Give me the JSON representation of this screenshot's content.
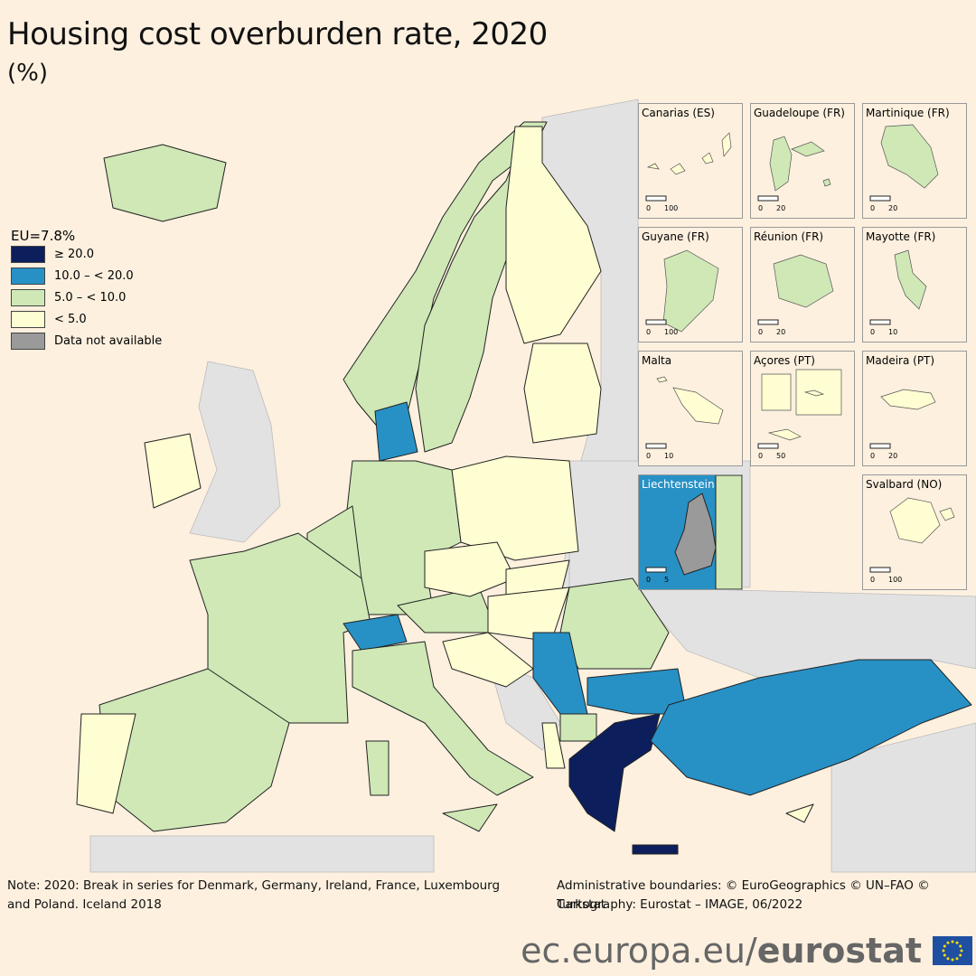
{
  "header": {
    "title": "Housing cost overburden rate, 2020",
    "subtitle": "(%)"
  },
  "legend": {
    "title": "EU=7.8%",
    "items": [
      {
        "label": "≥ 20.0",
        "color": "#0c1f5c"
      },
      {
        "label": "10.0 – < 20.0",
        "color": "#2791c6"
      },
      {
        "label": "5.0 – < 10.0",
        "color": "#cfe8b6"
      },
      {
        "label": "< 5.0",
        "color": "#fffdd2"
      },
      {
        "label": "Data not available",
        "color": "#9a9a9a"
      }
    ]
  },
  "insets": [
    {
      "label": "Canarias (ES)",
      "scale": [
        "0",
        "100"
      ]
    },
    {
      "label": "Guadeloupe (FR)",
      "scale": [
        "0",
        "20"
      ]
    },
    {
      "label": "Martinique (FR)",
      "scale": [
        "0",
        "20"
      ]
    },
    {
      "label": "Guyane (FR)",
      "scale": [
        "0",
        "100"
      ]
    },
    {
      "label": "Réunion (FR)",
      "scale": [
        "0",
        "20"
      ]
    },
    {
      "label": "Mayotte (FR)",
      "scale": [
        "0",
        "10"
      ]
    },
    {
      "label": "Malta",
      "scale": [
        "0",
        "10"
      ]
    },
    {
      "label": "Açores (PT)",
      "scale": [
        "0",
        "50"
      ]
    },
    {
      "label": "Madeira (PT)",
      "scale": [
        "0",
        "20"
      ]
    },
    {
      "label": "Liechtenstein",
      "scale": [
        "0",
        "5"
      ]
    },
    {
      "label": "Svalbard (NO)",
      "scale": [
        "0",
        "100"
      ]
    }
  ],
  "notes": {
    "note": "Note: 2020: Break in series for Denmark, Germany, Ireland, France, Luxembourg and Poland. Iceland 2018",
    "credits": [
      "Administrative boundaries: © EuroGeographics © UN–FAO © Turkstat",
      "Cartography: Eurostat – IMAGE, 06/2022"
    ]
  },
  "footer": {
    "url": "ec.europa.eu/",
    "brand": "eurostat"
  }
}
